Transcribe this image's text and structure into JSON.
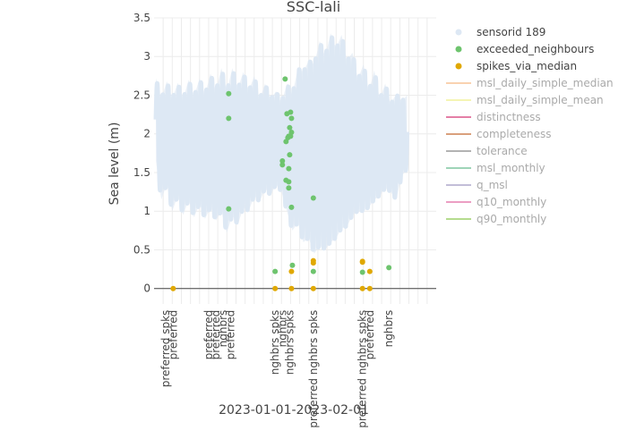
{
  "chart_data": {
    "type": "scatter",
    "title": "SSC-lali",
    "xlabel": "2023-01-01-2023-02-01",
    "ylabel": "Sea level (m)",
    "ylim": [
      -0.2,
      3.5
    ],
    "yticks": [
      "0",
      "0.5",
      "1",
      "1.5",
      "2",
      "2.5",
      "3",
      "3.5"
    ],
    "ytick_values": [
      0,
      0.5,
      1,
      1.5,
      2,
      2.5,
      3,
      3.5
    ],
    "grid": true,
    "legend_placement": "top-right",
    "x_category_labels": [
      {
        "day": 1.3,
        "text": "preferred spks"
      },
      {
        "day": 2.1,
        "text": "preferred"
      },
      {
        "day": 6.0,
        "text": "preferred"
      },
      {
        "day": 6.8,
        "text": "preferred"
      },
      {
        "day": 7.6,
        "text": "nghbrs"
      },
      {
        "day": 8.4,
        "text": "preferred"
      },
      {
        "day": 13.3,
        "text": "nghbrs spks"
      },
      {
        "day": 14.1,
        "text": "nghbrs"
      },
      {
        "day": 14.9,
        "text": "nghbrs spks"
      },
      {
        "day": 17.5,
        "text": "preferred nghbrs spks"
      },
      {
        "day": 22.9,
        "text": "preferred nghbrs spks"
      },
      {
        "day": 23.7,
        "text": "preferred"
      },
      {
        "day": 25.8,
        "text": "nghbrs"
      }
    ],
    "x_range_days": [
      0,
      31
    ],
    "series": [
      {
        "name": "sensorid 189",
        "color": "#dde8f4",
        "kind": "band",
        "band_top": [
          [
            0.2,
            2.72
          ],
          [
            0.8,
            2.45
          ],
          [
            1.4,
            2.68
          ],
          [
            2.0,
            2.45
          ],
          [
            2.6,
            2.66
          ],
          [
            3.2,
            2.45
          ],
          [
            3.8,
            2.7
          ],
          [
            4.4,
            2.48
          ],
          [
            5.0,
            2.72
          ],
          [
            5.6,
            2.5
          ],
          [
            6.2,
            2.78
          ],
          [
            6.8,
            2.55
          ],
          [
            7.4,
            2.85
          ],
          [
            8.0,
            2.55
          ],
          [
            8.6,
            2.85
          ],
          [
            9.2,
            2.58
          ],
          [
            9.8,
            2.8
          ],
          [
            10.4,
            2.55
          ],
          [
            11.0,
            2.75
          ],
          [
            11.6,
            2.45
          ],
          [
            12.2,
            2.65
          ],
          [
            12.8,
            2.45
          ],
          [
            13.4,
            2.55
          ],
          [
            14.0,
            2.4
          ],
          [
            14.6,
            2.65
          ],
          [
            15.2,
            2.5
          ],
          [
            15.8,
            2.85
          ],
          [
            16.4,
            2.8
          ],
          [
            17.0,
            2.95
          ],
          [
            17.6,
            2.9
          ],
          [
            18.2,
            3.2
          ],
          [
            18.8,
            3.0
          ],
          [
            19.4,
            3.3
          ],
          [
            20.0,
            3.1
          ],
          [
            20.6,
            3.28
          ],
          [
            21.2,
            2.95
          ],
          [
            21.8,
            3.05
          ],
          [
            22.4,
            2.7
          ],
          [
            23.0,
            2.9
          ],
          [
            23.6,
            2.55
          ],
          [
            24.2,
            2.82
          ],
          [
            24.8,
            2.45
          ],
          [
            25.4,
            2.65
          ],
          [
            26.0,
            2.38
          ],
          [
            26.6,
            2.52
          ],
          [
            27.2,
            2.42
          ],
          [
            27.8,
            2.5
          ]
        ],
        "band_bottom": [
          [
            0.2,
            1.65
          ],
          [
            0.8,
            1.15
          ],
          [
            1.4,
            1.35
          ],
          [
            2.0,
            1.0
          ],
          [
            2.6,
            1.2
          ],
          [
            3.2,
            0.95
          ],
          [
            3.8,
            1.15
          ],
          [
            4.4,
            0.92
          ],
          [
            5.0,
            1.1
          ],
          [
            5.6,
            0.9
          ],
          [
            6.2,
            1.05
          ],
          [
            6.8,
            0.88
          ],
          [
            7.4,
            1.0
          ],
          [
            8.0,
            0.72
          ],
          [
            8.6,
            0.95
          ],
          [
            9.2,
            0.82
          ],
          [
            9.8,
            1.05
          ],
          [
            10.4,
            1.0
          ],
          [
            11.0,
            1.2
          ],
          [
            11.6,
            1.12
          ],
          [
            12.2,
            1.3
          ],
          [
            12.8,
            1.2
          ],
          [
            13.4,
            1.35
          ],
          [
            14.0,
            1.25
          ],
          [
            14.6,
            1.0
          ],
          [
            15.2,
            0.75
          ],
          [
            15.8,
            0.85
          ],
          [
            16.4,
            0.6
          ],
          [
            17.0,
            0.65
          ],
          [
            17.6,
            0.45
          ],
          [
            18.2,
            0.55
          ],
          [
            18.8,
            0.5
          ],
          [
            19.4,
            0.6
          ],
          [
            20.0,
            0.65
          ],
          [
            20.6,
            0.78
          ],
          [
            21.2,
            0.8
          ],
          [
            21.8,
            0.95
          ],
          [
            22.4,
            1.0
          ],
          [
            23.0,
            1.0
          ],
          [
            23.6,
            1.05
          ],
          [
            24.2,
            1.15
          ],
          [
            24.8,
            1.2
          ],
          [
            25.4,
            1.3
          ],
          [
            26.0,
            1.25
          ],
          [
            26.6,
            1.15
          ],
          [
            27.2,
            1.45
          ],
          [
            27.8,
            1.55
          ]
        ],
        "wave_period_days": 0.6
      },
      {
        "name": "exceeded_neighbours",
        "color": "#6ec46e",
        "kind": "points",
        "points": [
          [
            8.2,
            2.52
          ],
          [
            8.2,
            2.2
          ],
          [
            8.2,
            1.03
          ],
          [
            13.3,
            0.22
          ],
          [
            14.1,
            1.6
          ],
          [
            14.1,
            1.65
          ],
          [
            14.4,
            2.71
          ],
          [
            14.5,
            1.4
          ],
          [
            14.5,
            1.9
          ],
          [
            14.6,
            2.26
          ],
          [
            14.7,
            1.95
          ],
          [
            14.8,
            1.97
          ],
          [
            14.8,
            1.55
          ],
          [
            14.8,
            1.38
          ],
          [
            14.8,
            1.3
          ],
          [
            14.9,
            1.73
          ],
          [
            14.9,
            2.08
          ],
          [
            15.0,
            2.28
          ],
          [
            15.0,
            1.97
          ],
          [
            15.1,
            2.2
          ],
          [
            15.1,
            2.02
          ],
          [
            15.1,
            1.05
          ],
          [
            15.2,
            0.3
          ],
          [
            17.5,
            1.17
          ],
          [
            17.5,
            0.22
          ],
          [
            22.9,
            0.21
          ],
          [
            25.8,
            0.27
          ]
        ]
      },
      {
        "name": "spikes_via_median",
        "color": "#e0a800",
        "kind": "points",
        "points": [
          [
            2.1,
            0.0
          ],
          [
            13.3,
            0.0
          ],
          [
            15.1,
            0.0
          ],
          [
            15.1,
            0.22
          ],
          [
            17.5,
            0.0
          ],
          [
            17.5,
            0.33
          ],
          [
            17.5,
            0.36
          ],
          [
            22.9,
            0.0
          ],
          [
            22.9,
            0.34
          ],
          [
            22.9,
            0.35
          ],
          [
            23.7,
            0.0
          ],
          [
            23.7,
            0.22
          ]
        ]
      }
    ],
    "legend": [
      {
        "name": "sensorid 189",
        "color": "#dde8f4",
        "marker": "dot",
        "active": true
      },
      {
        "name": "exceeded_neighbours",
        "color": "#6ec46e",
        "marker": "dot",
        "active": true
      },
      {
        "name": "spikes_via_median",
        "color": "#e0a800",
        "marker": "dot",
        "active": true
      },
      {
        "name": "msl_daily_simple_median",
        "color": "#f9d2b0",
        "marker": "line",
        "active": false
      },
      {
        "name": "msl_daily_simple_mean",
        "color": "#f5f5b4",
        "marker": "line",
        "active": false
      },
      {
        "name": "distinctness",
        "color": "#e47fa6",
        "marker": "line",
        "active": false
      },
      {
        "name": "completeness",
        "color": "#d9a07c",
        "marker": "line",
        "active": false
      },
      {
        "name": "tolerance",
        "color": "#b3b3b3",
        "marker": "line",
        "active": false
      },
      {
        "name": "msl_monthly",
        "color": "#9fd4b8",
        "marker": "line",
        "active": false
      },
      {
        "name": "q_msl",
        "color": "#c3bed8",
        "marker": "line",
        "active": false
      },
      {
        "name": "q10_monthly",
        "color": "#ec9ec3",
        "marker": "line",
        "active": false
      },
      {
        "name": "q90_monthly",
        "color": "#b5dc8e",
        "marker": "line",
        "active": false
      }
    ]
  }
}
